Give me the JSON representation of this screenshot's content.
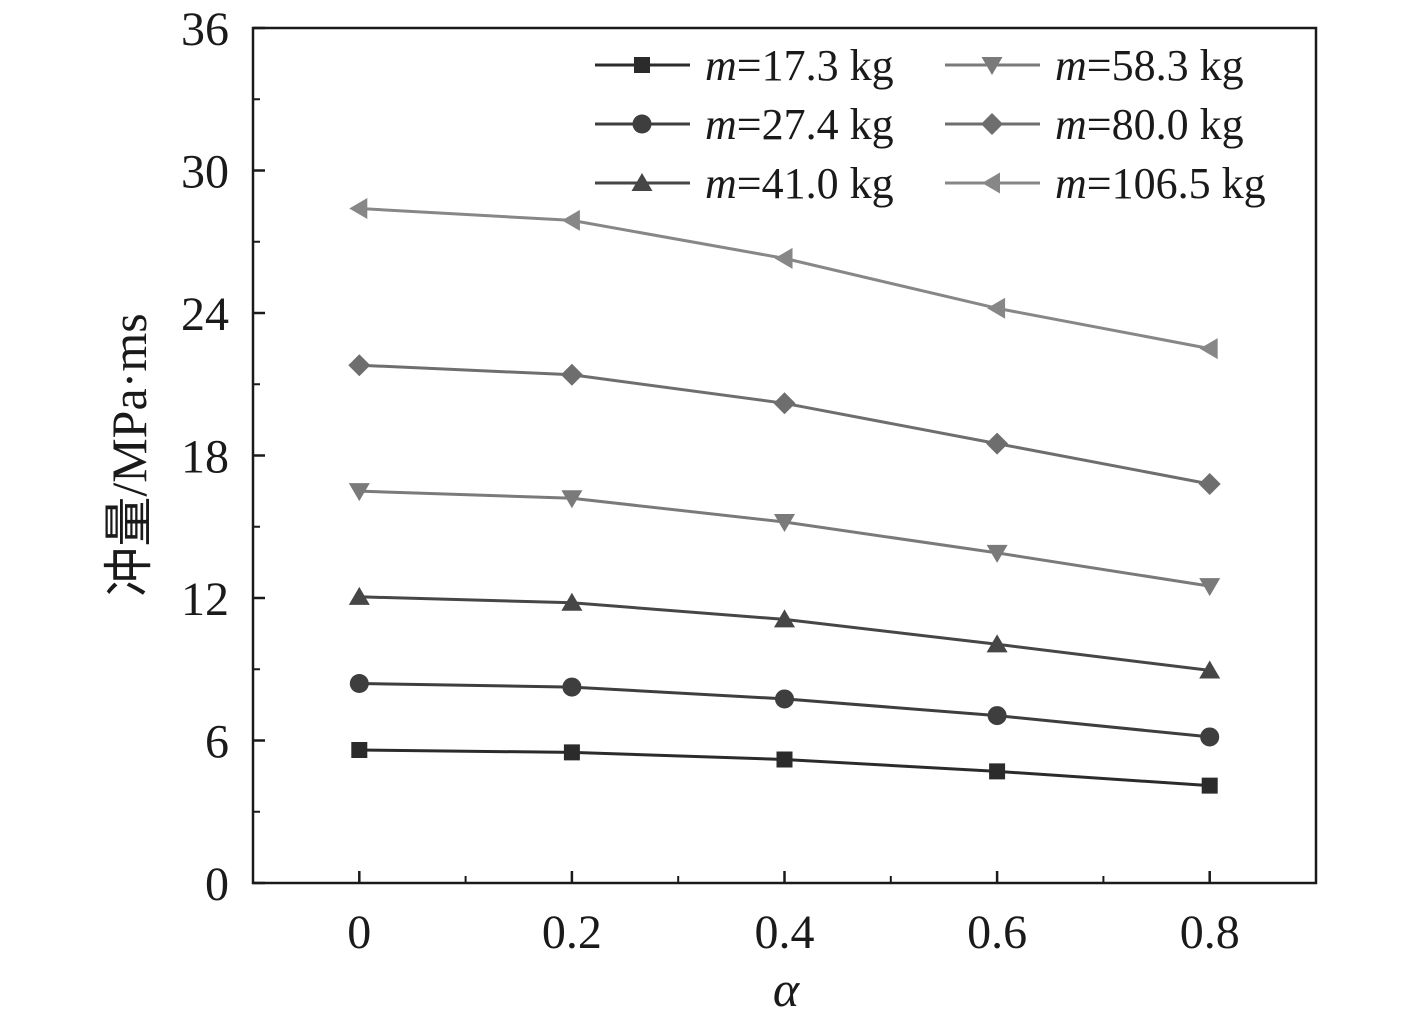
{
  "chart_data": {
    "type": "line",
    "title": "",
    "xlabel": "α",
    "ylabel": "冲量/MPa·ms",
    "x": [
      0,
      0.2,
      0.4,
      0.6,
      0.8
    ],
    "x_tick_labels": [
      "0",
      "0.2",
      "0.4",
      "0.6",
      "0.8"
    ],
    "xlim": [
      -0.1,
      0.9
    ],
    "ylim": [
      0,
      36
    ],
    "y_ticks": [
      0,
      6,
      12,
      18,
      24,
      30,
      36
    ],
    "y_tick_labels": [
      "0",
      "6",
      "12",
      "18",
      "24",
      "30",
      "36"
    ],
    "grid": false,
    "legend_position": "top-right",
    "legend_var": "m",
    "series": [
      {
        "name": "=17.3 kg",
        "marker": "square",
        "color": "#2b2b2b",
        "values": [
          5.6,
          5.5,
          5.2,
          4.7,
          4.1
        ]
      },
      {
        "name": "=27.4 kg",
        "marker": "circle",
        "color": "#3e3e3e",
        "values": [
          8.4,
          8.25,
          7.75,
          7.05,
          6.15
        ]
      },
      {
        "name": "=41.0 kg",
        "marker": "triangle-up",
        "color": "#464646",
        "values": [
          12.05,
          11.8,
          11.1,
          10.05,
          8.95
        ]
      },
      {
        "name": "=58.3 kg",
        "marker": "triangle-down",
        "color": "#7a7a7a",
        "values": [
          16.5,
          16.2,
          15.2,
          13.9,
          12.5
        ]
      },
      {
        "name": "=80.0 kg",
        "marker": "diamond",
        "color": "#6e6e6e",
        "values": [
          21.8,
          21.4,
          20.2,
          18.5,
          16.8
        ]
      },
      {
        "name": "=106.5 kg",
        "marker": "triangle-left",
        "color": "#878787",
        "values": [
          28.4,
          27.9,
          26.3,
          24.2,
          22.5
        ]
      }
    ]
  }
}
